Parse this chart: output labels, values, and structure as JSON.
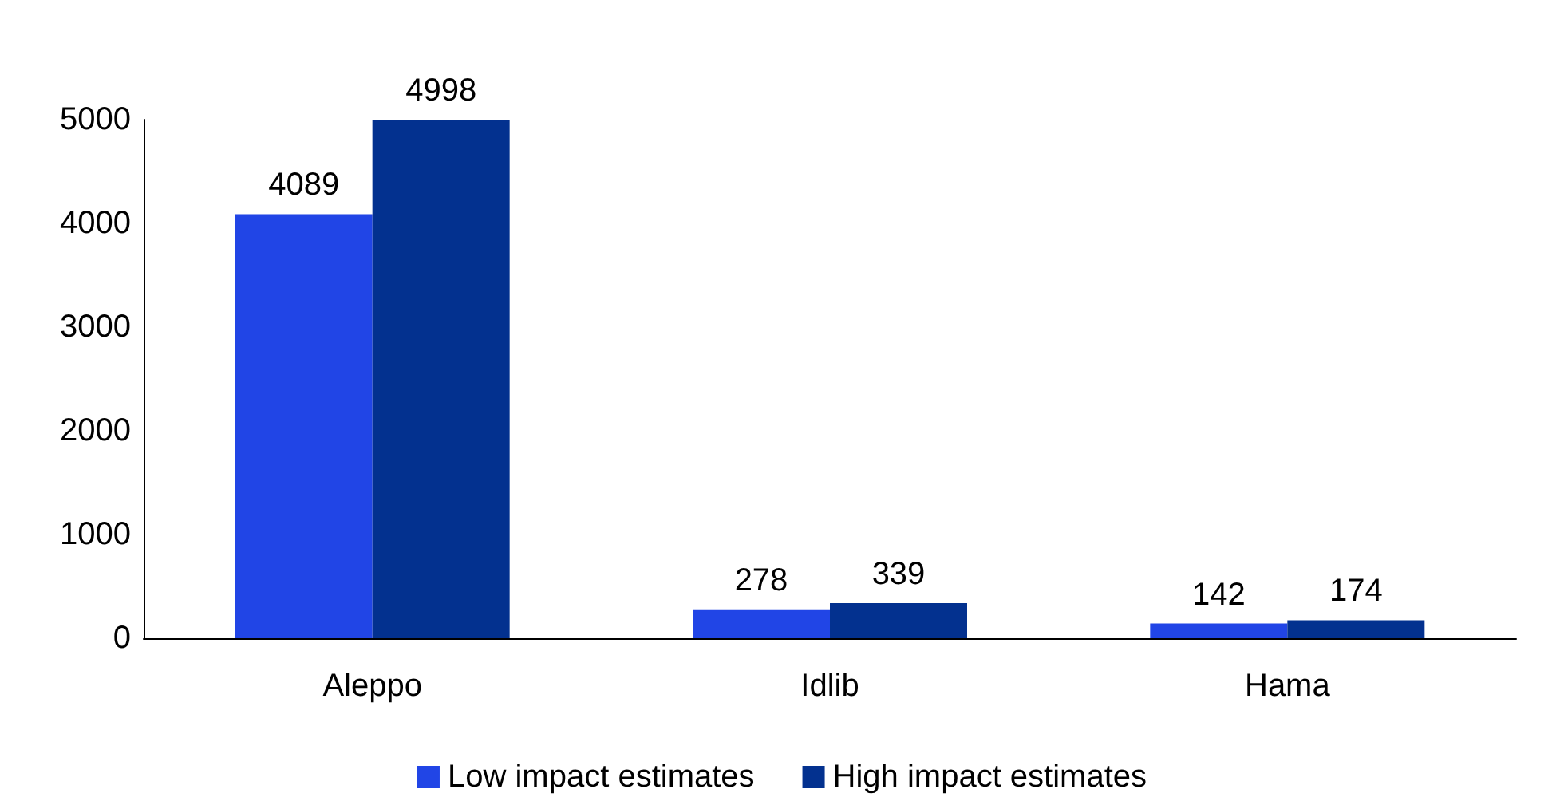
{
  "chart_data": {
    "type": "bar",
    "categories": [
      "Aleppo",
      "Idlib",
      "Hama"
    ],
    "series": [
      {
        "name": "Low impact estimates",
        "color": "#2145e6",
        "values": [
          4089,
          278,
          142
        ]
      },
      {
        "name": "High impact estimates",
        "color": "#03318f",
        "values": [
          4998,
          339,
          174
        ]
      }
    ],
    "ylim": [
      0,
      5000
    ],
    "yticks": [
      0,
      1000,
      2000,
      3000,
      4000,
      5000
    ],
    "grid": false,
    "legend": "bottom",
    "data_labels": true
  }
}
